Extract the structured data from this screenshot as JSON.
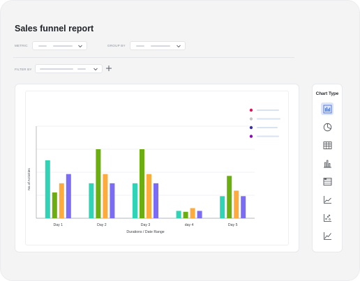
{
  "page": {
    "title": "Sales funnel report"
  },
  "controls": {
    "metric_label": "METRIC",
    "group_by_label": "GROUP BY",
    "filter_by_label": "FILTER BY"
  },
  "chart_type_panel": {
    "title": "Chart Type",
    "options": [
      {
        "icon": "bar-chart-icon",
        "active": true
      },
      {
        "icon": "pie-chart-icon",
        "active": false
      },
      {
        "icon": "table-icon",
        "active": false
      },
      {
        "icon": "column-chart-icon",
        "active": false
      },
      {
        "icon": "pivot-table-icon",
        "active": false
      },
      {
        "icon": "area-chart-icon",
        "active": false
      },
      {
        "icon": "scatter-chart-icon",
        "active": false
      },
      {
        "icon": "line-chart-icon",
        "active": false
      }
    ]
  },
  "colors": {
    "teal": "#2fd4b6",
    "green": "#6aae10",
    "orange": "#ffab3b",
    "purple": "#7a6cf5",
    "legend_dots": [
      "#e0115f",
      "#c8c8c8",
      "#3b2fa6",
      "#8a0cb0"
    ]
  },
  "chart_data": {
    "type": "bar",
    "xlabel": "Durations / Date Range",
    "ylabel": "No.of Activities",
    "categories": [
      "Day 1",
      "Day 2",
      "Day 3",
      "day 4",
      "Day 5"
    ],
    "ylim": [
      0,
      100
    ],
    "grid": true,
    "legend": "top-right",
    "series": [
      {
        "values": [
          63,
          38,
          38,
          8,
          24
        ]
      },
      {
        "values": [
          28,
          75,
          75,
          7,
          46
        ]
      },
      {
        "values": [
          38,
          48,
          48,
          11,
          30
        ]
      },
      {
        "values": [
          48,
          38,
          38,
          8,
          24
        ]
      }
    ]
  }
}
